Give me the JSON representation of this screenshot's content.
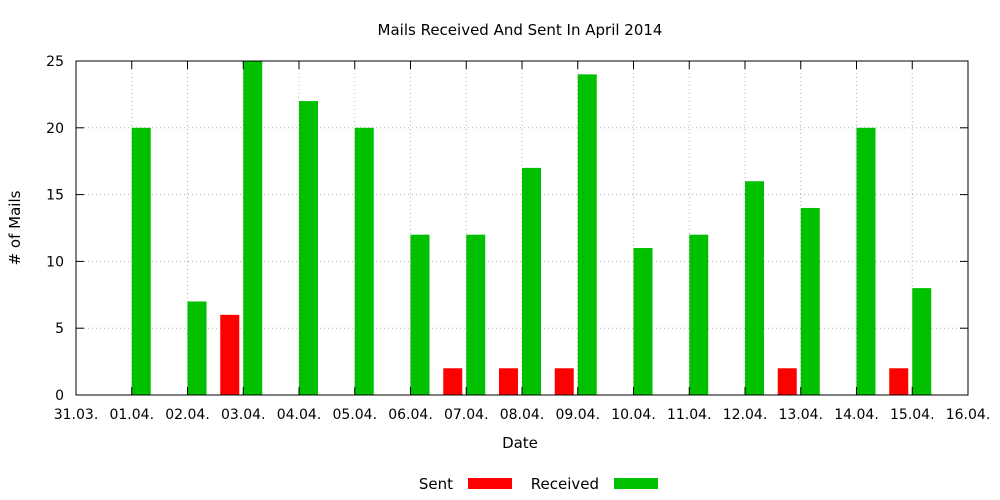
{
  "chart_data": {
    "type": "bar",
    "title": "Mails Received And Sent In April 2014",
    "xlabel": "Date",
    "ylabel": "# of Mails",
    "ylim": [
      0,
      25
    ],
    "yticks": [
      "0",
      "5",
      "10",
      "15",
      "20",
      "25"
    ],
    "x_tick_labels": [
      "31.03.",
      "01.04.",
      "02.04.",
      "03.04.",
      "04.04.",
      "05.04.",
      "06.04.",
      "07.04.",
      "08.04.",
      "09.04.",
      "10.04.",
      "11.04.",
      "12.04.",
      "13.04.",
      "14.04.",
      "15.04.",
      "16.04."
    ],
    "categories": [
      "01.04.",
      "02.04.",
      "03.04.",
      "04.04.",
      "05.04.",
      "06.04.",
      "07.04.",
      "08.04.",
      "09.04.",
      "10.04.",
      "11.04.",
      "12.04.",
      "13.04.",
      "14.04.",
      "15.04."
    ],
    "series": [
      {
        "name": "Sent",
        "color": "#ff0000",
        "values": [
          0,
          0,
          6,
          0,
          0,
          0,
          2,
          2,
          2,
          0,
          0,
          0,
          2,
          0,
          2
        ]
      },
      {
        "name": "Received",
        "color": "#00c000",
        "values": [
          20,
          7,
          25,
          22,
          20,
          12,
          12,
          17,
          24,
          11,
          12,
          16,
          14,
          20,
          8
        ]
      }
    ],
    "grid": true,
    "legend_position": "bottom-center"
  }
}
